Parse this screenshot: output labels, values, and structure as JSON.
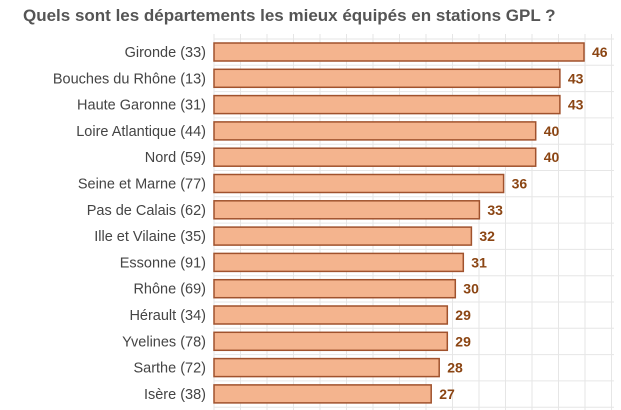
{
  "chart_data": {
    "type": "bar",
    "orientation": "horizontal",
    "title": "Quels sont les départements les mieux équipés en stations GPL ?",
    "categories": [
      "Gironde (33)",
      "Bouches du Rhône (13)",
      "Haute Garonne (31)",
      "Loire Atlantique (44)",
      "Nord (59)",
      "Seine et Marne (77)",
      "Pas de Calais (62)",
      "Ille et Vilaine (35)",
      "Essonne (91)",
      "Rhône (69)",
      "Hérault (34)",
      "Yvelines (78)",
      "Sarthe (72)",
      "Isère (38)"
    ],
    "values": [
      46,
      43,
      43,
      40,
      40,
      36,
      33,
      32,
      31,
      30,
      29,
      29,
      28,
      27
    ],
    "xlim": [
      0,
      46
    ],
    "grid": true,
    "data_labels": true,
    "colors": {
      "bar_fill": "#f4b48e",
      "bar_stroke": "#a0522d",
      "value_label": "#8b4513",
      "title": "#555555",
      "grid": "#e6e6e6"
    }
  }
}
